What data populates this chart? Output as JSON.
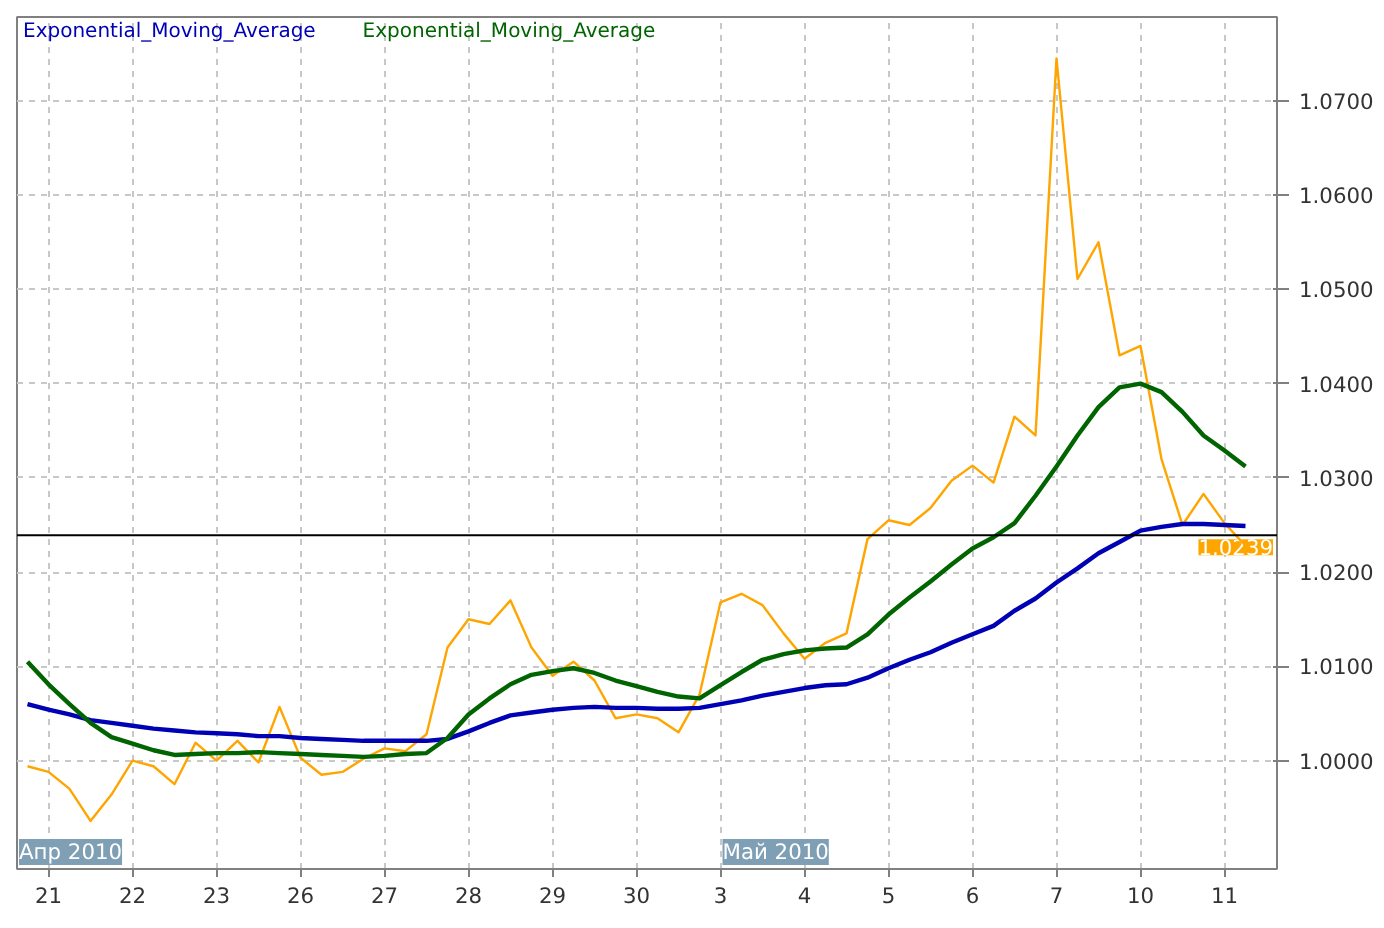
{
  "chart_data": {
    "type": "line",
    "categories": [
      null,
      "21",
      null,
      null,
      null,
      "22",
      null,
      null,
      null,
      "23",
      null,
      null,
      null,
      "26",
      null,
      null,
      null,
      "27",
      null,
      null,
      null,
      "28",
      null,
      null,
      null,
      "29",
      null,
      null,
      null,
      "30",
      null,
      null,
      null,
      "3",
      null,
      null,
      null,
      "4",
      null,
      null,
      null,
      "5",
      null,
      null,
      null,
      "6",
      null,
      null,
      null,
      "7",
      null,
      null,
      null,
      "10",
      null,
      null,
      null,
      "11",
      null,
      null
    ],
    "series": [
      {
        "color": "#ffa500",
        "values": [
          0.9994,
          0.9988,
          0.997,
          0.9936,
          0.9964,
          1.0,
          0.9994,
          0.9975,
          1.0019,
          1.0,
          1.0021,
          0.9998,
          1.0057,
          1.0003,
          0.9985,
          0.9988,
          1.0002,
          1.0013,
          1.001,
          1.0028,
          1.012,
          1.015,
          1.0145,
          1.017,
          1.012,
          1.009,
          1.0105,
          1.0085,
          1.0045,
          1.0049,
          1.0045,
          1.003,
          1.007,
          1.0168,
          1.0177,
          1.0165,
          1.0135,
          1.0108,
          1.0125,
          1.0135,
          1.0235,
          1.0255,
          1.025,
          1.0268,
          1.0297,
          1.0313,
          1.0295,
          1.0365,
          1.0345,
          1.0745,
          1.0511,
          1.055,
          1.043,
          1.044,
          1.032,
          1.025,
          1.0283,
          1.0252,
          1.0228,
          null
        ]
      },
      {
        "name": "Exponential_Moving_Average",
        "color": "#0000b4",
        "values": [
          1.006,
          1.0054,
          1.0049,
          1.0043,
          1.004,
          1.0037,
          1.0034,
          1.0032,
          1.003,
          1.0029,
          1.0028,
          1.0026,
          1.0026,
          1.0024,
          1.0023,
          1.0022,
          1.0021,
          1.0021,
          1.0021,
          1.0021,
          1.0023,
          1.0031,
          1.004,
          1.0048,
          1.0051,
          1.0054,
          1.0056,
          1.0057,
          1.0056,
          1.0056,
          1.0055,
          1.0055,
          1.0056,
          1.006,
          1.0064,
          1.0069,
          1.0073,
          1.0077,
          1.008,
          1.0081,
          1.0088,
          1.0098,
          1.0107,
          1.0115,
          1.0125,
          1.0134,
          1.0143,
          1.0159,
          1.0172,
          1.0189,
          1.0204,
          1.022,
          1.0232,
          1.0244,
          1.0248,
          1.0251,
          1.0251,
          1.025,
          1.0249,
          null
        ]
      },
      {
        "name": "Exponential_Moving_Average",
        "color": "#006400",
        "values": [
          1.0105,
          1.0081,
          1.006,
          1.004,
          1.0025,
          1.0018,
          1.0011,
          1.0006,
          1.0007,
          1.0008,
          1.0008,
          1.0009,
          1.0008,
          1.0007,
          1.0006,
          1.0005,
          1.0004,
          1.0005,
          1.0007,
          1.0008,
          1.0024,
          1.0049,
          1.0066,
          1.0081,
          1.0091,
          1.0095,
          1.0098,
          1.0093,
          1.0085,
          1.0079,
          1.0073,
          1.0068,
          1.0066,
          1.008,
          1.0094,
          1.0107,
          1.0113,
          1.0117,
          1.0119,
          1.012,
          1.0134,
          1.0155,
          1.0173,
          1.019,
          1.0208,
          1.0225,
          1.0237,
          1.0252,
          1.0281,
          1.0312,
          1.0345,
          1.0375,
          1.0396,
          1.04,
          1.0391,
          1.037,
          1.0345,
          1.0329,
          1.0312,
          null
        ]
      }
    ],
    "ylim": [
      0.9885,
      1.0789
    ],
    "yticks": [
      {
        "value": 1.0,
        "label": "1.0000"
      },
      {
        "value": 1.01,
        "label": "1.0100"
      },
      {
        "value": 1.02,
        "label": "1.0200"
      },
      {
        "value": 1.03,
        "label": "1.0300"
      },
      {
        "value": 1.04,
        "label": "1.0400"
      },
      {
        "value": 1.05,
        "label": "1.0500"
      },
      {
        "value": 1.06,
        "label": "1.0600"
      },
      {
        "value": 1.07,
        "label": "1.0700"
      }
    ],
    "ref_lines": [
      {
        "axis": "y",
        "value": 1.0239,
        "label": "1.0239",
        "color": "#000000"
      }
    ],
    "annotations": [
      "Апр 2010",
      "Май 2010"
    ],
    "grid": true,
    "legend": "top left",
    "marker": "none",
    "line_style": "solid"
  }
}
